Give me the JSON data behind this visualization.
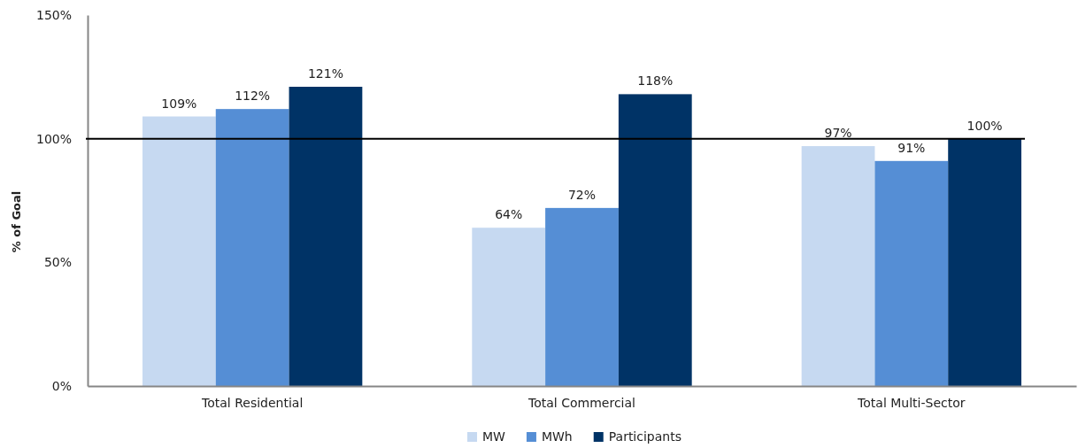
{
  "chart_data": {
    "type": "bar",
    "ylabel": "% of Goal",
    "categories": [
      "Total Residential",
      "Total Commercial",
      "Total Multi-Sector"
    ],
    "series": [
      {
        "name": "MW",
        "color": "#c6d9f1",
        "values": [
          109,
          64,
          97
        ],
        "value_labels": [
          "109%",
          "64%",
          "97%"
        ]
      },
      {
        "name": "MWh",
        "color": "#558ed5",
        "values": [
          112,
          72,
          91
        ],
        "value_labels": [
          "112%",
          "72%",
          "91%"
        ]
      },
      {
        "name": "Participants",
        "color": "#003366",
        "values": [
          121,
          118,
          100
        ],
        "value_labels": [
          "121%",
          "118%",
          "100%"
        ]
      }
    ],
    "ylim": [
      0,
      150
    ],
    "yticks": [
      {
        "value": 0,
        "label": "0%"
      },
      {
        "value": 50,
        "label": "50%"
      },
      {
        "value": 100,
        "label": "100%"
      },
      {
        "value": 150,
        "label": "150%"
      }
    ],
    "ref_lines": [
      {
        "axis": "y",
        "value": 100,
        "color": "#000000"
      }
    ],
    "grid": false,
    "legend": "bottom"
  }
}
